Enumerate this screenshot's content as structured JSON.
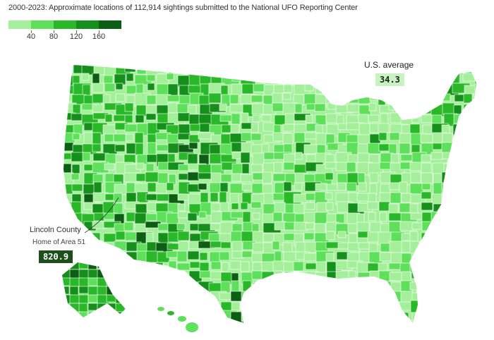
{
  "header": {
    "subtitle": "2000-2023: Approximate locations of 112,914 sightings submitted to the National UFO Reporting Center"
  },
  "legend": {
    "colors": [
      "#a4f09a",
      "#5ee05a",
      "#28b828",
      "#14901a",
      "#0b5e12"
    ],
    "ticks": [
      "40",
      "80",
      "120",
      "160"
    ],
    "tick_values": [
      40,
      80,
      120,
      160
    ]
  },
  "map": {
    "region": "United States (counties)",
    "fill_colors": {
      "lightest": "#a4f09a",
      "light": "#5ee05a",
      "medium": "#28b828",
      "dark": "#14901a",
      "darkest": "#0b5e12"
    },
    "border_color": "#ffffff"
  },
  "annotations": {
    "us_average_label": "U.S. average",
    "us_average_value": "34.3",
    "county_name": "Lincoln County",
    "county_note": "Home of Area 51",
    "county_value": "820.9"
  }
}
